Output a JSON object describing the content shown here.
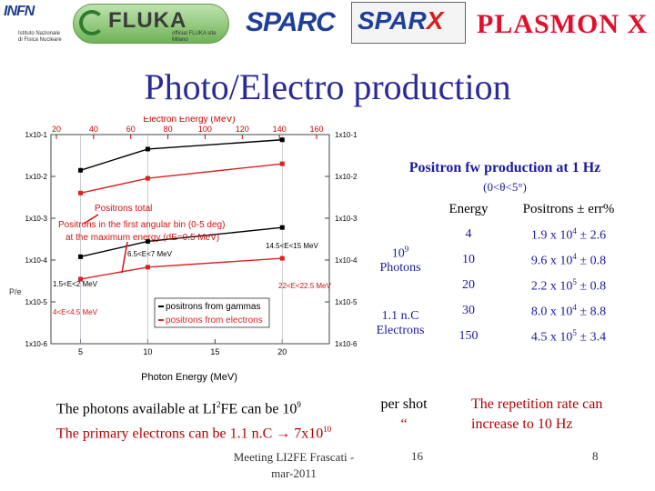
{
  "logos": {
    "infn": "INFN",
    "infn_sub": "Istituto Nazionale di Fisica Nucleare",
    "fluka": "FLUKA",
    "fluka_sub": "official FLUKA site Milano",
    "sparc": "SPARC",
    "sparx_main": "SPAR",
    "sparx_x": "X",
    "plasmon": "PLASMON X"
  },
  "title": "Photo/Electro production",
  "plot": {
    "top_axis_label": "Electron Energy (MeV)",
    "bottom_axis_label": "Photon Energy (MeV)",
    "left_axis_label": "P/e",
    "top_ticks": [
      "20",
      "40",
      "60",
      "80",
      "100",
      "120",
      "140",
      "160"
    ],
    "bottom_ticks": [
      "5",
      "10",
      "15",
      "20"
    ],
    "left_ticks": [
      "1x10-1",
      "1x10-2",
      "1x10-3",
      "1x10-4",
      "1x10-5",
      "1x10-6"
    ],
    "right_ticks": [
      "1x10-1",
      "1x10-2",
      "1x10-3",
      "1x10-4",
      "1x10-5",
      "1x10-6"
    ],
    "annotations": {
      "positrons_total": "Positrons total",
      "first_bin_1": "Positrons in the first angular bin (0-5 deg)",
      "first_bin_2": "at the maximum energy (dE=0.5 MeV)",
      "range_14_15": "14.5<E<15 MeV",
      "range_6_7": "6.5<E<7 MeV",
      "range_1_2": "1.5<E<2 MeV",
      "range_22": "22<E<22.5 MeV",
      "range_4": "4<E<4.5 MeV"
    },
    "legend": {
      "gammas": "positrons from gammas",
      "electrons": "positrons from electrons"
    },
    "colors": {
      "gammas": "#000000",
      "electrons": "#e02020",
      "annotation": "#d41010",
      "axis_top": "#cc0000"
    }
  },
  "chart_data": {
    "type": "line",
    "xlabel": "Photon Energy (MeV)",
    "ylabel": "",
    "x_top_label": "Electron Energy (MeV)",
    "ylim": [
      1e-06,
      0.1
    ],
    "yscale": "log",
    "series": [
      {
        "name": "positrons from gammas",
        "x": [
          5,
          10,
          20
        ],
        "values": [
          0.014,
          0.045,
          0.075
        ]
      },
      {
        "name": "positrons from gammas",
        "x": [
          5,
          10,
          20
        ],
        "values": [
          0.00012,
          0.00028,
          0.0006
        ]
      },
      {
        "name": "positrons from electrons",
        "x": [
          5,
          10,
          20
        ],
        "values": [
          0.004,
          0.009,
          0.02
        ]
      },
      {
        "name": "positrons from electrons",
        "x": [
          5,
          10,
          20
        ],
        "values": [
          3.5e-05,
          6.75e-05,
          0.00011
        ]
      }
    ]
  },
  "positron": {
    "title": "Positron fw production at 1 Hz",
    "subtitle": "(0<θ<5°)",
    "header_energy": "Energy",
    "header_positrons": "Positrons ± err%",
    "photons_base": "10",
    "photons_exp": "9",
    "photons_label": "Photons",
    "electrons_label_1": "1.1 n.C",
    "electrons_label_2": "Electrons",
    "rows": [
      {
        "energy": "4",
        "mant": "1.9 x 10",
        "exp": "4",
        "err": " ± 2.6"
      },
      {
        "energy": "10",
        "mant": "9.6 x 10",
        "exp": "4",
        "err": " ± 0.8"
      },
      {
        "energy": "20",
        "mant": "2.2 x 10",
        "exp": "5",
        "err": " ± 0.8"
      },
      {
        "energy": "30",
        "mant": "8.0 x 10",
        "exp": "4",
        "err": " ± 8.8"
      },
      {
        "energy": "150",
        "mant": "4.5 x 10",
        "exp": "5",
        "err": " ± 3.4"
      }
    ]
  },
  "bottom": {
    "line1_a": "The photons available at LI",
    "line1_sup": "2",
    "line1_b": "FE can be 10",
    "line1_exp": "9",
    "line2_a": "The primary electrons can be 1.1 n.C ",
    "line2_arrow": "→",
    "line2_b": " 7x10",
    "line2_exp": "10",
    "pershot_1": "per shot",
    "pershot_2": "“",
    "repetition": "The repetition rate can increase to 10 Hz"
  },
  "footer": {
    "meeting": "Meeting LI2FE Frascati -mar-2011",
    "num": "16",
    "page": "8"
  }
}
